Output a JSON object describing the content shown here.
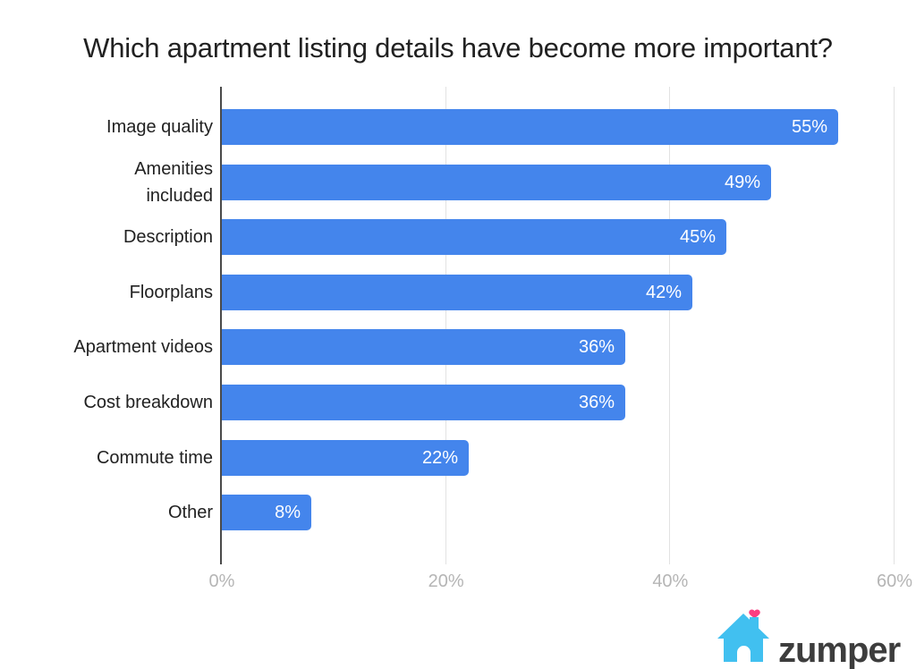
{
  "title": "Which apartment listing details have become more important?",
  "chart_data": {
    "type": "bar",
    "orientation": "horizontal",
    "title": "Which apartment listing details have become more important?",
    "categories": [
      "Image quality",
      "Amenities\nincluded",
      "Description",
      "Floorplans",
      "Apartment videos",
      "Cost breakdown",
      "Commute time",
      "Other"
    ],
    "values": [
      55,
      49,
      45,
      42,
      36,
      36,
      22,
      8
    ],
    "value_labels": [
      "55%",
      "49%",
      "45%",
      "42%",
      "36%",
      "36%",
      "22%",
      "8%"
    ],
    "xlabel": "",
    "ylabel": "",
    "xlim": [
      0,
      60
    ],
    "x_tick_values": [
      0,
      20,
      40,
      60
    ],
    "x_tick_labels": [
      "0%",
      "20%",
      "40%",
      "60%"
    ],
    "grid": "vertical-only",
    "legend": "none",
    "colors": {
      "bar": "#4485ec",
      "value_label": "#ffffff",
      "category_label": "#212121",
      "tick_label": "#b5b5b5",
      "gridline": "#e2e2e2",
      "axis_line": "#4a4a4a"
    }
  },
  "branding": {
    "logo_text": "zumper",
    "house_icon_color": "#41c0f0",
    "heart_icon_color": "#fd3e81",
    "door_color": "#ffffff",
    "text_color": "#3d3d3d"
  }
}
